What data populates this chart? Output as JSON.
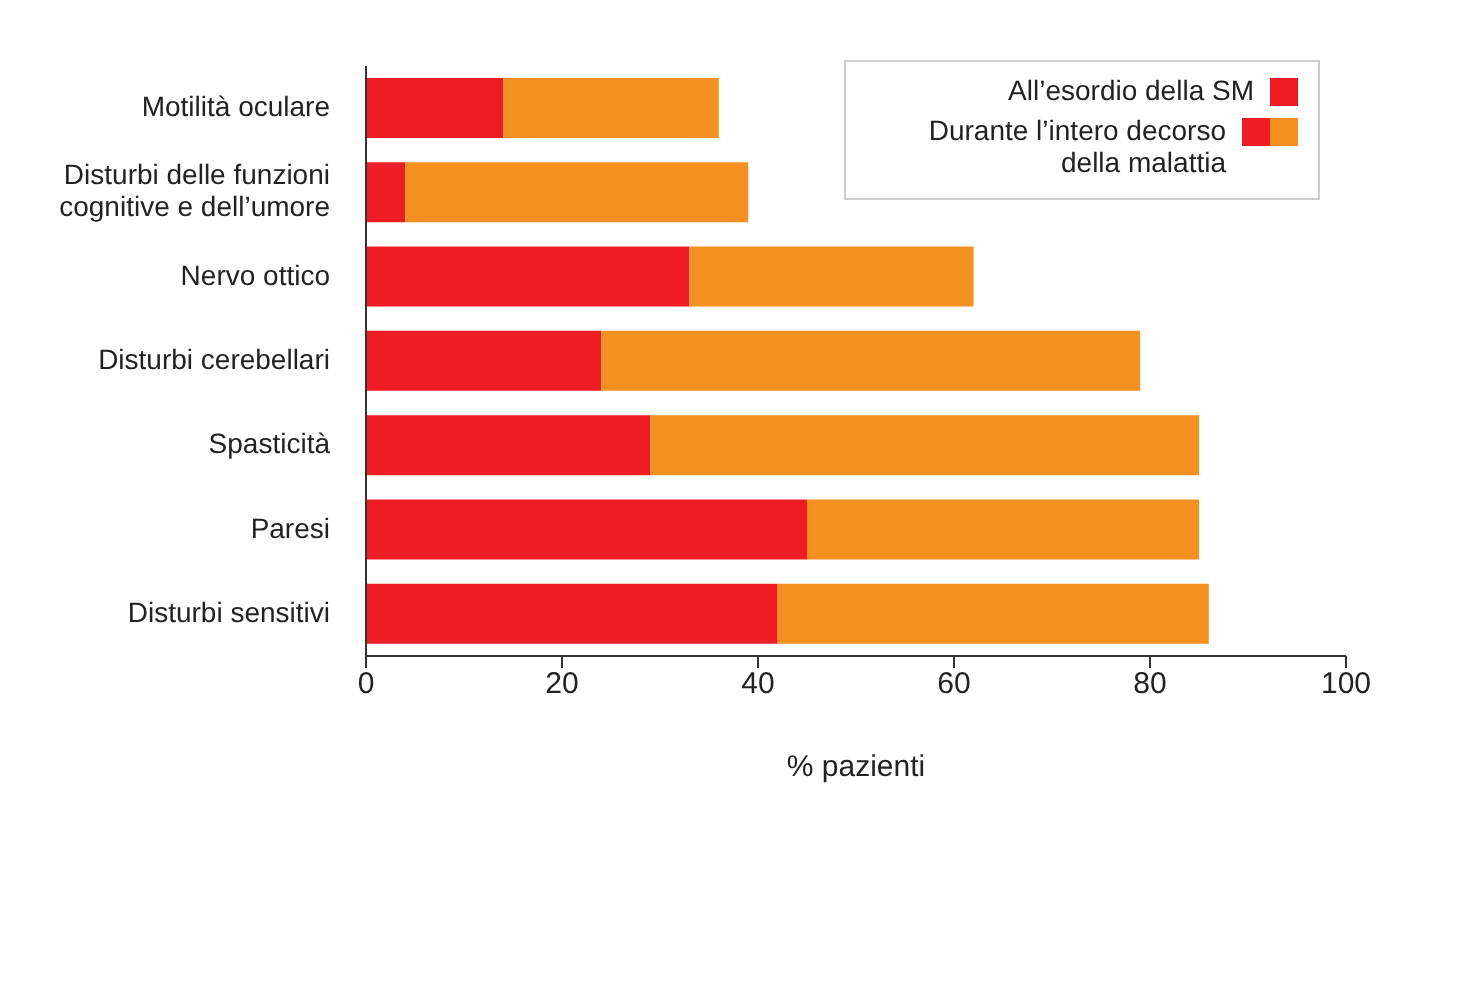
{
  "chart_data": {
    "type": "bar",
    "orientation": "horizontal",
    "stacked": true,
    "xlabel": "% pazienti",
    "categories": [
      "Motilità oculare",
      "Disturbi delle funzioni cognitive e dell’umore",
      "Nervo ottico",
      "Disturbi cerebellari",
      "Spasticità",
      "Paresi",
      "Disturbi sensitivi"
    ],
    "series": [
      {
        "name": "All’esordio della SM",
        "color": "#ee1c25",
        "values": [
          14,
          4,
          33,
          24,
          29,
          45,
          42
        ]
      },
      {
        "name": "Durante l’intero decorso della malattia",
        "color": "#f39020",
        "values": [
          22,
          35,
          29,
          55,
          56,
          40,
          44
        ]
      }
    ],
    "xlim": [
      0,
      100
    ],
    "xticks": [
      0,
      20,
      40,
      60,
      80,
      100
    ],
    "grid": false,
    "legend": "top right"
  }
}
